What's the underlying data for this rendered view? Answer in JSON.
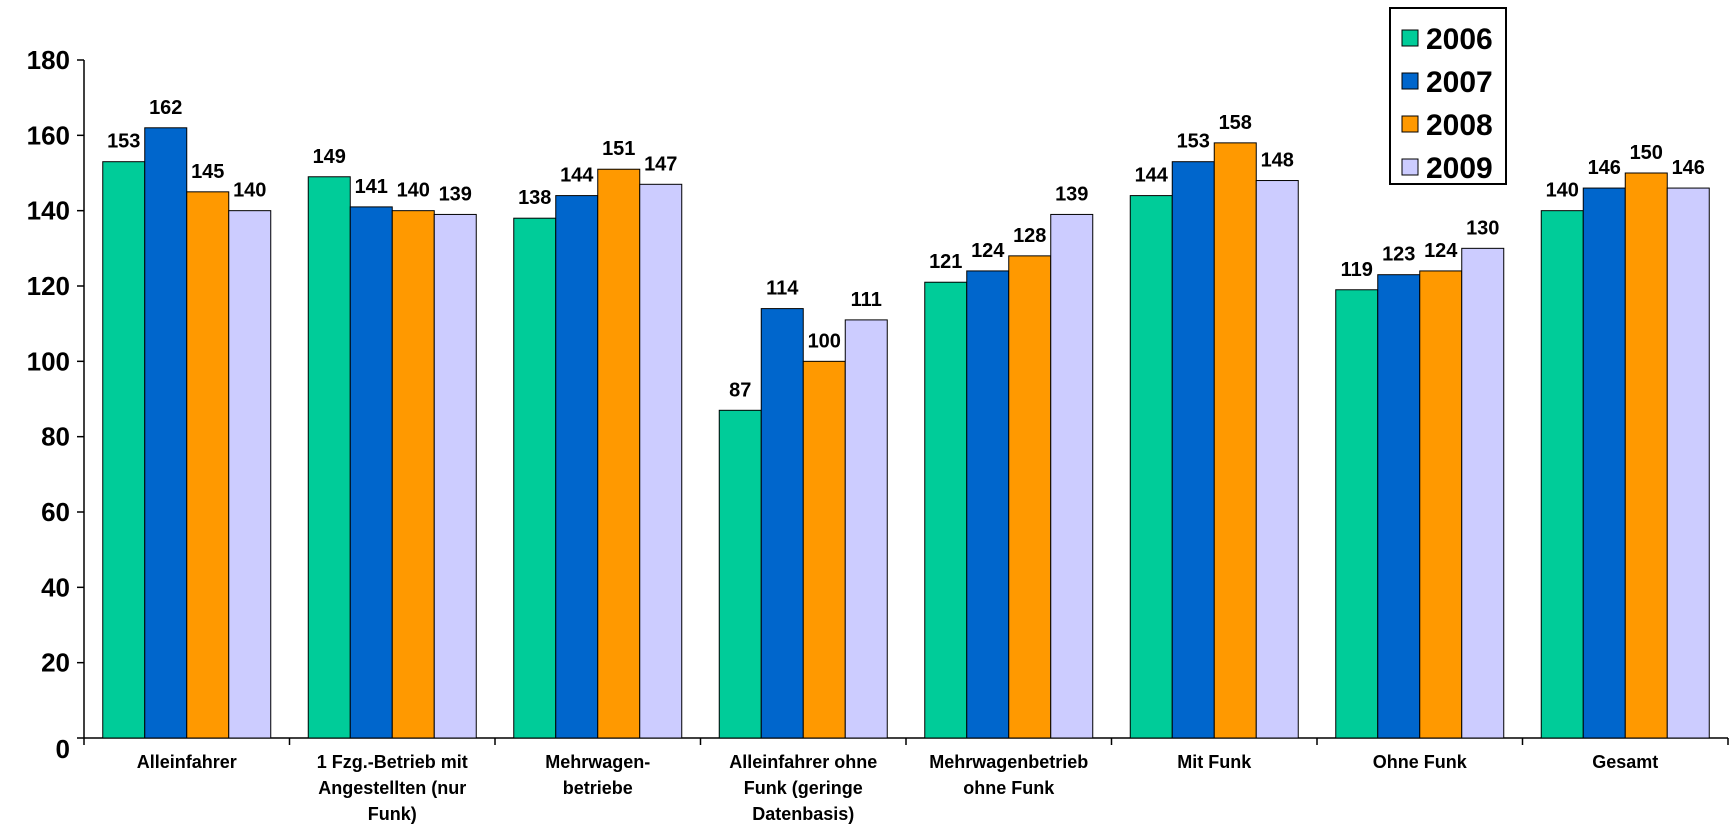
{
  "chart_data": {
    "type": "bar",
    "title": "",
    "xlabel": "",
    "ylabel": "",
    "ylim": [
      0,
      180
    ],
    "yticks": [
      0,
      20,
      40,
      60,
      80,
      100,
      120,
      140,
      160,
      180
    ],
    "grid": false,
    "legend_position": "top-right",
    "categories": [
      [
        "Alleinfahrer"
      ],
      [
        "1 Fzg.-Betrieb mit",
        "Angestellten (nur",
        "Funk)"
      ],
      [
        "Mehrwagen-",
        "betriebe"
      ],
      [
        "Alleinfahrer ohne",
        "Funk (geringe",
        "Datenbasis)"
      ],
      [
        "Mehrwagenbetrieb",
        "ohne Funk"
      ],
      [
        "Mit Funk"
      ],
      [
        "Ohne Funk"
      ],
      [
        "Gesamt"
      ]
    ],
    "series": [
      {
        "name": "2006",
        "color": "#00CC99",
        "values": [
          153,
          149,
          138,
          87,
          121,
          144,
          119,
          140
        ]
      },
      {
        "name": "2007",
        "color": "#0066CC",
        "values": [
          162,
          141,
          144,
          114,
          124,
          153,
          123,
          146
        ]
      },
      {
        "name": "2008",
        "color": "#FF9900",
        "values": [
          145,
          140,
          151,
          100,
          128,
          158,
          124,
          150
        ]
      },
      {
        "name": "2009",
        "color": "#CCCCFF",
        "values": [
          140,
          139,
          147,
          111,
          139,
          148,
          130,
          146
        ]
      }
    ]
  }
}
